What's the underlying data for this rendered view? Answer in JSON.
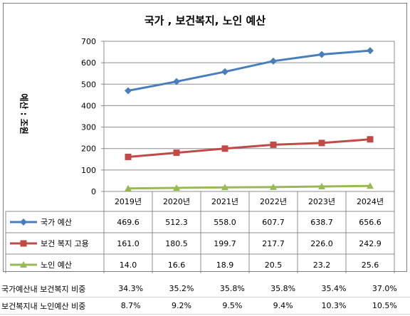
{
  "chart_data": {
    "type": "line",
    "title": "국가 , 보건복지, 노인 예산",
    "ylabel": "예산 : 조원",
    "ylim": [
      0,
      700
    ],
    "yticks": [
      0,
      100,
      200,
      300,
      400,
      500,
      600,
      700
    ],
    "grid": true,
    "categories": [
      "2019년",
      "2020년",
      "2021년",
      "2022년",
      "2023년",
      "2024년"
    ],
    "series": [
      {
        "name": "국가 예산",
        "color": "#4a7ebb",
        "marker": "diamond",
        "values": [
          469.6,
          512.3,
          558.0,
          607.7,
          638.7,
          656.6
        ],
        "labels": [
          "469.6",
          "512.3",
          "558.0",
          "607.7",
          "638.7",
          "656.6"
        ]
      },
      {
        "name": "보건 복지 고용",
        "color": "#be4b48",
        "marker": "square",
        "values": [
          161.0,
          180.5,
          199.7,
          217.7,
          226.0,
          242.9
        ],
        "labels": [
          "161.0",
          "180.5",
          "199.7",
          "217.7",
          "226.0",
          "242.9"
        ]
      },
      {
        "name": "노인 예산",
        "color": "#98b954",
        "marker": "triangle",
        "values": [
          14.0,
          16.6,
          18.9,
          20.5,
          23.2,
          25.6
        ],
        "labels": [
          "14.0",
          "16.6",
          "18.9",
          "20.5",
          "23.2",
          "25.6"
        ]
      }
    ]
  },
  "extra_rows": [
    {
      "label": "국가예산내 보건복지 비중",
      "values": [
        "34.3%",
        "35.2%",
        "35.8%",
        "35.8%",
        "35.4%",
        "37.0%"
      ]
    },
    {
      "label": "보건복지내 노인예산 비중",
      "values": [
        "8.7%",
        "9.2%",
        "9.5%",
        "9.4%",
        "10.3%",
        "10.5%"
      ]
    }
  ]
}
